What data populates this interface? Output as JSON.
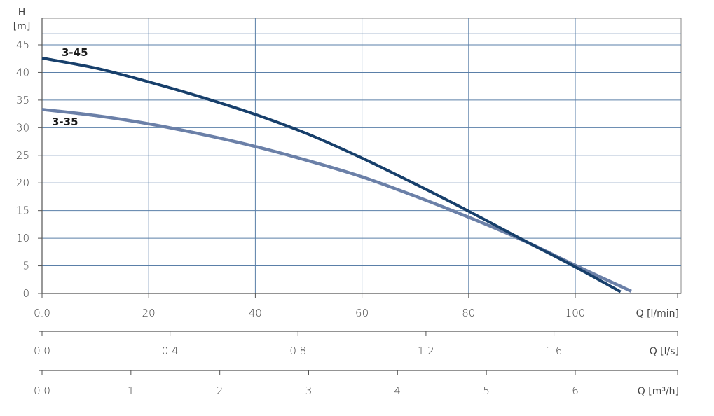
{
  "chart_data": {
    "type": "line",
    "ylabel_top": "H",
    "ylabel_unit": "[m]",
    "ylim": [
      0,
      47
    ],
    "yticks": [
      "0",
      "5",
      "10",
      "15",
      "20",
      "25",
      "30",
      "35",
      "40",
      "45"
    ],
    "ytick_values": [
      0,
      5,
      10,
      15,
      20,
      25,
      30,
      35,
      40,
      45
    ],
    "grid": true,
    "x_axes": [
      {
        "label": "Q [l/min]",
        "ticks": [
          "0.0",
          "20",
          "40",
          "60",
          "80",
          "100"
        ],
        "tick_values": [
          0,
          20,
          40,
          60,
          80,
          100
        ],
        "xlim": [
          0,
          120
        ]
      },
      {
        "label": "Q [l/s]",
        "ticks": [
          "0.0",
          "0.4",
          "0.8",
          "1.2",
          "1.6"
        ],
        "tick_values": [
          0,
          0.4,
          0.8,
          1.2,
          1.6
        ],
        "xlim": [
          0,
          2.0
        ]
      },
      {
        "label": "Q [m³/h]",
        "ticks": [
          "0.0",
          "1",
          "2",
          "3",
          "4",
          "5",
          "6"
        ],
        "tick_values": [
          0,
          1,
          2,
          3,
          4,
          5,
          6
        ],
        "xlim": [
          0,
          7.2
        ]
      }
    ],
    "series": [
      {
        "name": "3-45",
        "color": "#173f6b",
        "x": [
          0,
          10,
          20,
          30,
          40,
          50,
          60,
          70,
          80,
          90,
          100,
          108.5
        ],
        "y": [
          42.6,
          40.8,
          38.3,
          35.5,
          32.4,
          28.8,
          24.5,
          19.8,
          14.9,
          9.8,
          4.8,
          0.3
        ]
      },
      {
        "name": "3-35",
        "color": "#6b80a8",
        "x": [
          0,
          10,
          20,
          30,
          40,
          50,
          60,
          70,
          80,
          90,
          100,
          110.5
        ],
        "y": [
          33.3,
          32.2,
          30.7,
          28.8,
          26.6,
          24.0,
          21.1,
          17.6,
          13.8,
          9.7,
          5.1,
          0.4
        ]
      }
    ],
    "grid_color": "#5a7fa8",
    "axis_color": "#555555"
  }
}
